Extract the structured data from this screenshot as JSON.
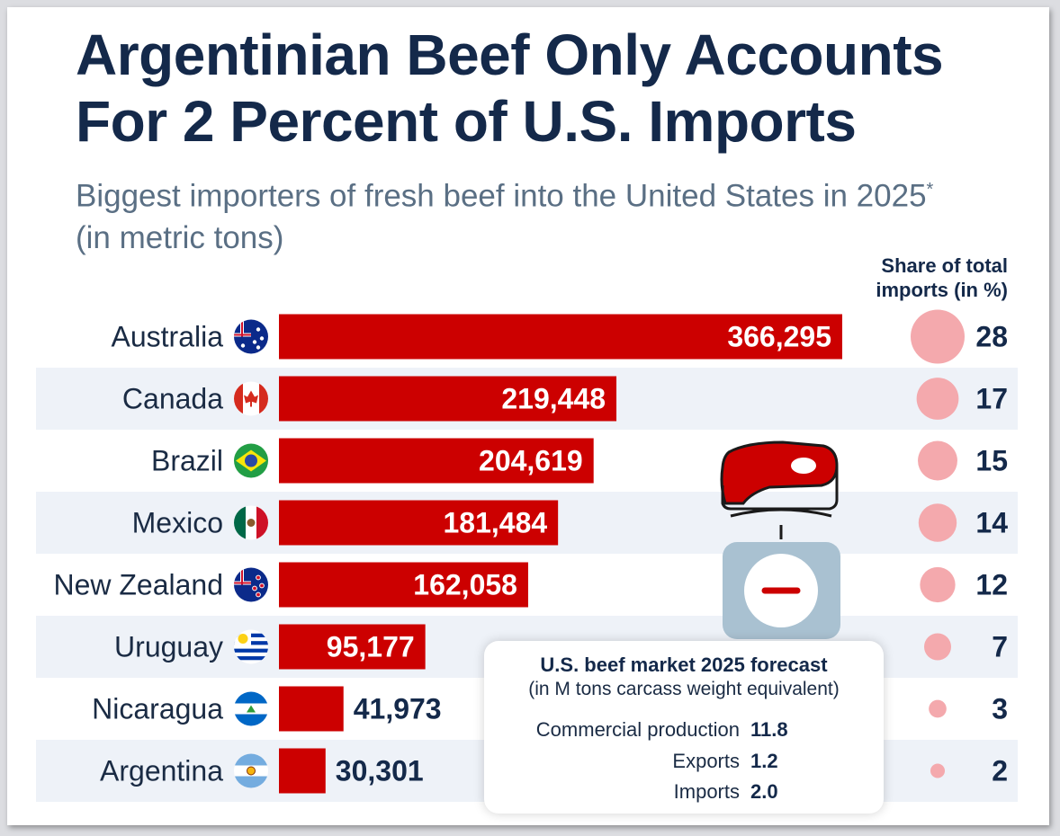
{
  "title": "Argentinian Beef Only Accounts For 2 Percent of U.S. Imports",
  "subtitle_main": "Biggest importers of fresh beef into the United States in 2025",
  "subtitle_mark": "*",
  "subtitle_unit": " (in metric tons)",
  "share_header": "Share of total imports (in %)",
  "chart_data": {
    "type": "bar",
    "orientation": "horizontal",
    "title": "Argentinian Beef Only Accounts For 2 Percent of U.S. Imports",
    "categories": [
      "Australia",
      "Canada",
      "Brazil",
      "Mexico",
      "New Zealand",
      "Uruguay",
      "Nicaragua",
      "Argentina"
    ],
    "values": [
      366295,
      219448,
      204619,
      181484,
      162058,
      95177,
      41973,
      30301
    ],
    "value_labels": [
      "366,295",
      "219,448",
      "204,619",
      "181,484",
      "162,058",
      "95,177",
      "41,973",
      "30,301"
    ],
    "share_pct": [
      28,
      17,
      15,
      14,
      12,
      7,
      3,
      2
    ],
    "xlim": [
      0,
      366295
    ],
    "bar_color": "#cc0000",
    "bubble_color": "#f4a9ad",
    "stripe_color": "#eef2f8"
  },
  "forecast": {
    "title": "U.S. beef market 2025 forecast",
    "subtitle": "(in M tons carcass weight equivalent)",
    "rows": [
      {
        "label": "Commercial production",
        "value": "11.8"
      },
      {
        "label": "Exports",
        "value": "1.2"
      },
      {
        "label": "Imports",
        "value": "2.0"
      }
    ]
  },
  "icons": [
    "flag-australia-icon",
    "flag-canada-icon",
    "flag-brazil-icon",
    "flag-mexico-icon",
    "flag-new-zealand-icon",
    "flag-uruguay-icon",
    "flag-nicaragua-icon",
    "flag-argentina-icon",
    "steak-on-scale-icon"
  ]
}
